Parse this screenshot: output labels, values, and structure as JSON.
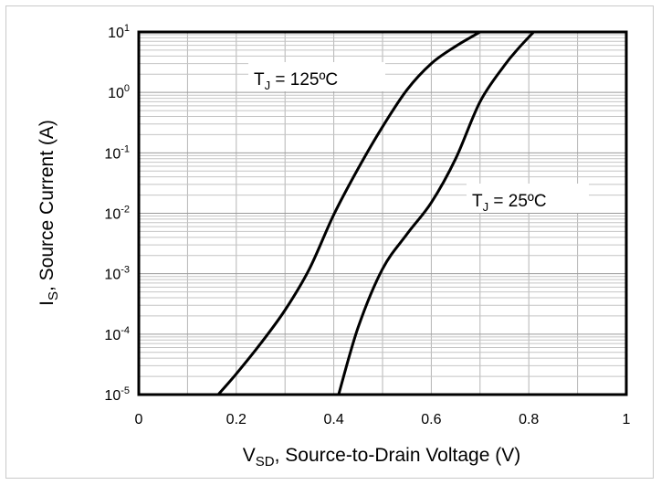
{
  "chart_data": {
    "type": "line",
    "title": "",
    "xlabel": {
      "main": "V",
      "sub": "SD",
      "rest": ", Source-to-Drain Voltage (V)"
    },
    "ylabel": {
      "main": "I",
      "sub": "S",
      "rest": ", Source Current (A)"
    },
    "xlim": [
      0,
      1
    ],
    "ylim": [
      1e-05,
      10
    ],
    "yscale": "log",
    "grid": true,
    "x_ticks": [
      "0",
      "0.2",
      "0.4",
      "0.6",
      "0.8",
      "1"
    ],
    "y_ticks": [
      {
        "base": "10",
        "exp": "1"
      },
      {
        "base": "10",
        "exp": "0"
      },
      {
        "base": "10",
        "exp": "-1"
      },
      {
        "base": "10",
        "exp": "-2"
      },
      {
        "base": "10",
        "exp": "-3"
      },
      {
        "base": "10",
        "exp": "-4"
      },
      {
        "base": "10",
        "exp": "-5"
      }
    ],
    "series": [
      {
        "label": {
          "main": "T",
          "sub": "J",
          "rest": " = 125ºC"
        },
        "points": [
          [
            0.163,
            1e-05
          ],
          [
            0.2,
            2.2e-05
          ],
          [
            0.25,
            7e-05
          ],
          [
            0.3,
            0.00025
          ],
          [
            0.35,
            0.0012
          ],
          [
            0.4,
            0.0095
          ],
          [
            0.45,
            0.055
          ],
          [
            0.5,
            0.27
          ],
          [
            0.55,
            1.1
          ],
          [
            0.6,
            3.0
          ],
          [
            0.65,
            5.8
          ],
          [
            0.7,
            10
          ]
        ]
      },
      {
        "label": {
          "main": "T",
          "sub": "J",
          "rest": " = 25ºC"
        },
        "points": [
          [
            0.41,
            1e-05
          ],
          [
            0.45,
            0.00013
          ],
          [
            0.5,
            0.0012
          ],
          [
            0.55,
            0.0045
          ],
          [
            0.6,
            0.015
          ],
          [
            0.65,
            0.08
          ],
          [
            0.7,
            0.7
          ],
          [
            0.75,
            2.8
          ],
          [
            0.78,
            5.5
          ],
          [
            0.81,
            10
          ]
        ]
      }
    ]
  }
}
